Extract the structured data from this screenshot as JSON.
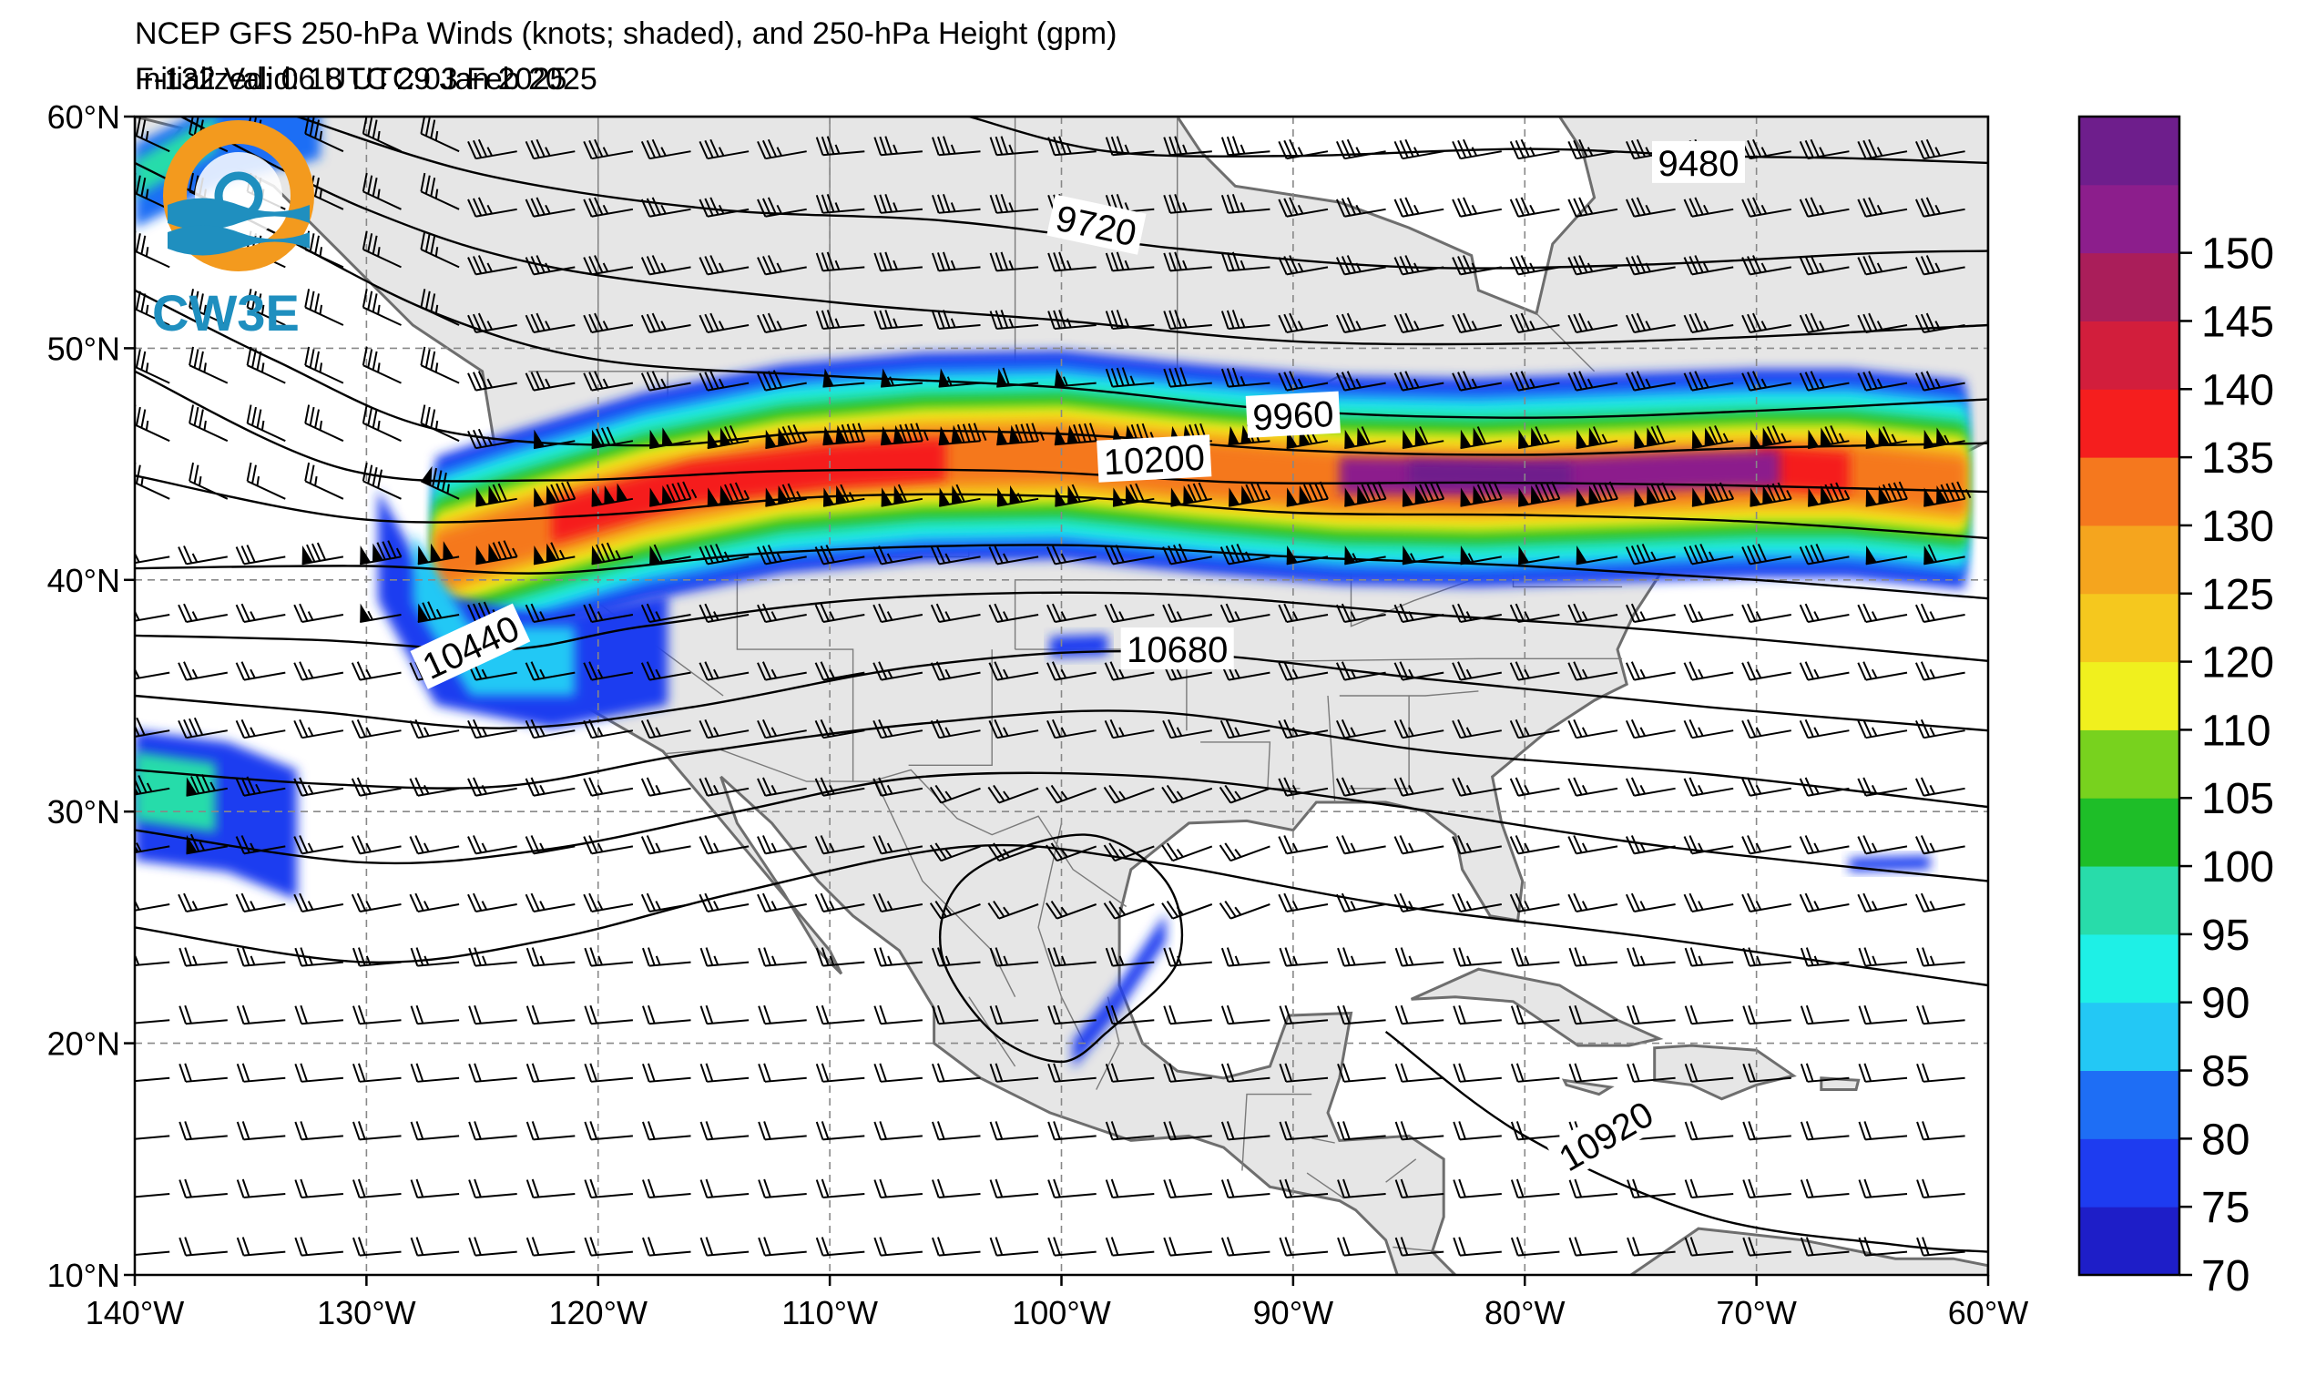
{
  "header": {
    "title": "NCEP GFS 250-hPa Winds (knots; shaded), and 250-hPa Height (gpm)",
    "initialized": "Initialized: 06 UTC 29 Jan 2025",
    "valid": "F-132  Valid: 18 UTC 03 Feb 2025"
  },
  "logo": {
    "text": "CW3E",
    "colors": {
      "ring_orange": "#f39a1e",
      "ring_blue": "#1f8fbf",
      "text": "#1f8fbf"
    }
  },
  "map": {
    "lon_range": [
      -140,
      -60
    ],
    "lat_range": [
      10,
      60
    ],
    "lon_ticks": [
      "140°W",
      "130°W",
      "120°W",
      "110°W",
      "100°W",
      "90°W",
      "80°W",
      "70°W",
      "60°W"
    ],
    "lat_ticks": [
      "60°N",
      "50°N",
      "40°N",
      "30°N",
      "20°N",
      "10°N"
    ],
    "contour_labels": [
      {
        "text": "9480",
        "lon": -72.5,
        "lat": 58.0,
        "angle": 0
      },
      {
        "text": "9720",
        "lon": -98.5,
        "lat": 55.3,
        "angle": 12
      },
      {
        "text": "9960",
        "lon": -90.0,
        "lat": 47.1,
        "angle": -3
      },
      {
        "text": "10200",
        "lon": -96.0,
        "lat": 45.2,
        "angle": -3
      },
      {
        "text": "10440",
        "lon": -125.5,
        "lat": 37.1,
        "angle": -25
      },
      {
        "text": "10680",
        "lon": -95.0,
        "lat": 37.0,
        "angle": 0
      },
      {
        "text": "10920",
        "lon": -76.5,
        "lat": 16.0,
        "angle": -30
      }
    ],
    "colors": {
      "land": "#e6e6e6",
      "coast": "#6e6e6e",
      "grid": "#888888"
    }
  },
  "colorbar": {
    "levels": [
      "70",
      "75",
      "80",
      "85",
      "90",
      "95",
      "100",
      "105",
      "110",
      "120",
      "125",
      "130",
      "135",
      "140",
      "145",
      "150"
    ],
    "colors": [
      "#1e1ec8",
      "#1e3cf0",
      "#1e6ef5",
      "#23c8f5",
      "#1ef0e6",
      "#28dcaa",
      "#1ebe28",
      "#78d21e",
      "#f0f01e",
      "#f5c81e",
      "#f5a51e",
      "#f5781e",
      "#f51e1e",
      "#d21e3c",
      "#aa1e5a",
      "#8c1e8c",
      "#6e1e8c"
    ]
  }
}
